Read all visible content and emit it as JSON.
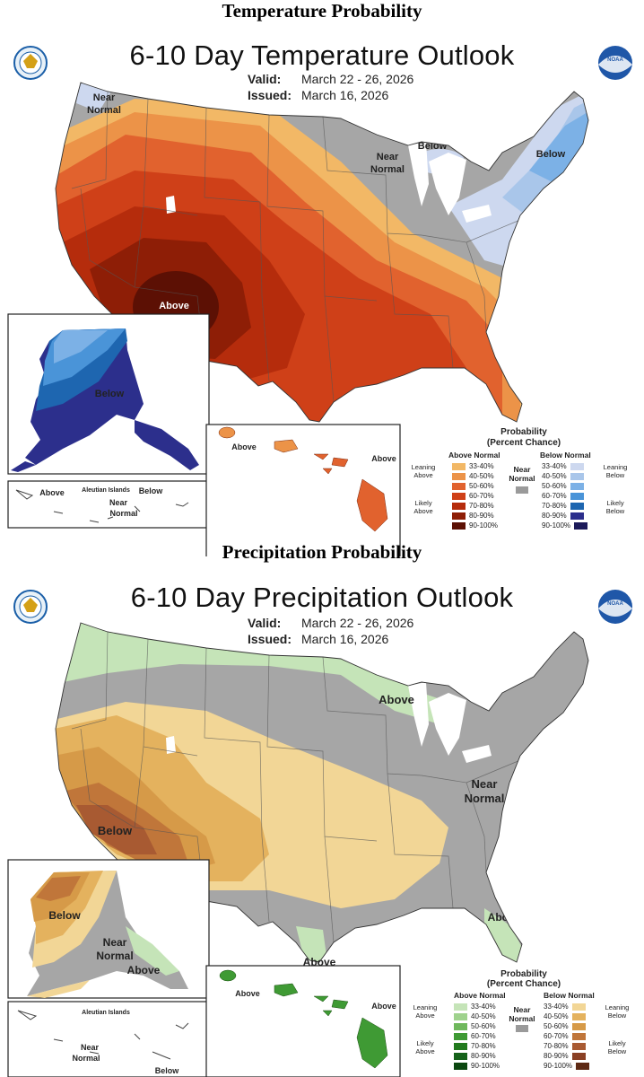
{
  "temperature": {
    "heading": "Temperature Probability",
    "title": "6-10 Day Temperature Outlook",
    "valid_label": "Valid:",
    "valid_value": "March 22 - 26, 2026",
    "issued_label": "Issued:",
    "issued_value": "March 16, 2026",
    "map_labels": {
      "near_normal_nw": "Near",
      "near_normal_nw2": "Normal",
      "near_normal_c": "Near",
      "near_normal_c2": "Normal",
      "below_gl": "Below",
      "below_ne": "Below",
      "above_sw": "Above",
      "alaska_below": "Below",
      "hawaii_above1": "Above",
      "hawaii_above2": "Above",
      "aleutian_above": "Above",
      "aleutian_title": "Aleutian Islands",
      "aleutian_below": "Below",
      "aleutian_near": "Near",
      "aleutian_normal": "Normal"
    },
    "legend": {
      "title1": "Probability",
      "title2": "(Percent Chance)",
      "above_head": "Above Normal",
      "below_head": "Below Normal",
      "near_head1": "Near",
      "near_head2": "Normal",
      "leaning_above1": "Leaning",
      "leaning_above2": "Above",
      "likely_above1": "Likely",
      "likely_above2": "Above",
      "leaning_below1": "Leaning",
      "leaning_below2": "Below",
      "likely_below1": "Likely",
      "likely_below2": "Below",
      "bins": [
        "33-40%",
        "40-50%",
        "50-60%",
        "60-70%",
        "70-80%",
        "80-90%",
        "90-100%"
      ],
      "above_colors": [
        "#f2b866",
        "#ec9348",
        "#e1622e",
        "#cf4018",
        "#b52c0c",
        "#8e1e06",
        "#5c1004"
      ],
      "below_colors": [
        "#cdd8ef",
        "#a9c6ea",
        "#7cb1e6",
        "#4a94d8",
        "#1e66b0",
        "#2c2f8c",
        "#1c1a5a"
      ]
    }
  },
  "precipitation": {
    "heading": "Precipitation Probability",
    "title": "6-10 Day Precipitation Outlook",
    "valid_label": "Valid:",
    "valid_value": "March 22 - 26, 2026",
    "issued_label": "Issued:",
    "issued_value": "March 16, 2026",
    "map_labels": {
      "above_gl": "Above",
      "near_normal_e": "Near",
      "near_normal_e2": "Normal",
      "below_sw": "Below",
      "above_fl": "Above",
      "above_tx": "Above",
      "alaska_below": "Below",
      "alaska_near": "Near",
      "alaska_normal": "Normal",
      "alaska_above": "Above",
      "hawaii_above1": "Above",
      "hawaii_above2": "Above",
      "aleutian_title": "Aleutian Islands",
      "aleutian_near": "Near",
      "aleutian_normal": "Normal",
      "aleutian_below": "Below"
    },
    "legend": {
      "title1": "Probability",
      "title2": "(Percent Chance)",
      "above_head": "Above Normal",
      "below_head": "Below Normal",
      "near_head1": "Near",
      "near_head2": "Normal",
      "leaning_above1": "Leaning",
      "leaning_above2": "Above",
      "likely_above1": "Likely",
      "likely_above2": "Above",
      "leaning_below1": "Leaning",
      "leaning_below2": "Below",
      "likely_below1": "Likely",
      "likely_below2": "Below",
      "bins": [
        "33-40%",
        "40-50%",
        "50-60%",
        "60-70%",
        "70-80%",
        "80-90%",
        "90-100%"
      ],
      "above_colors": [
        "#c5e4b8",
        "#9fd28d",
        "#6fb85c",
        "#3f9a34",
        "#217a1d",
        "#15621a",
        "#0b4710"
      ],
      "below_colors": [
        "#f2d696",
        "#e4b25e",
        "#d69a48",
        "#c0763a",
        "#a85a32",
        "#8a4024",
        "#5e2a14"
      ]
    }
  }
}
